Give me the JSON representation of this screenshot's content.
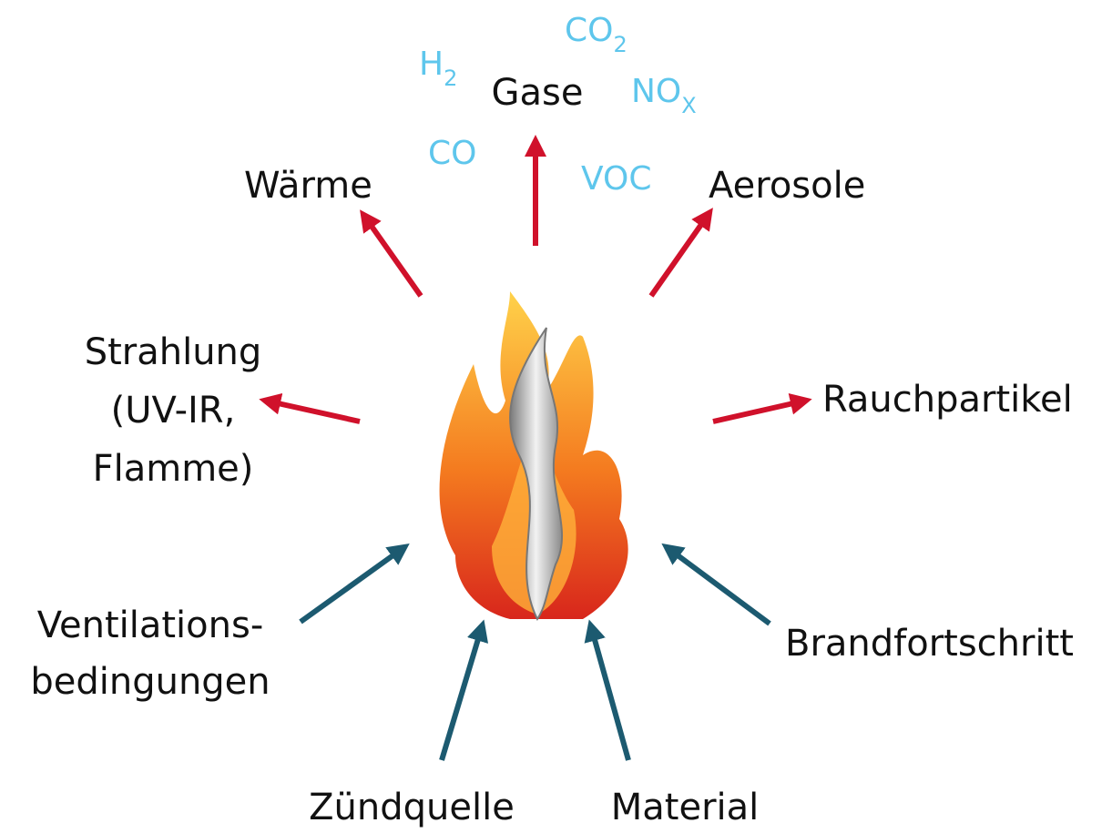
{
  "center": {
    "gases_label": "Gase",
    "gases": [
      {
        "base": "H",
        "sub": "2"
      },
      {
        "base": "CO",
        "sub": "2"
      },
      {
        "base": "NO",
        "sub": "X"
      },
      {
        "base": "CO"
      },
      {
        "base": "VOC"
      }
    ]
  },
  "outputs": {
    "heat": "Wärme",
    "aerosols": "Aerosole",
    "radiation": [
      "Strahlung",
      "(UV-IR,",
      "Flamme)"
    ],
    "smoke": "Rauchpartikel"
  },
  "inputs": {
    "ventilation": [
      "Ventilations-",
      "bedingungen"
    ],
    "progress": "Brandfortschritt",
    "ignition": "Zündquelle",
    "material": "Material"
  }
}
